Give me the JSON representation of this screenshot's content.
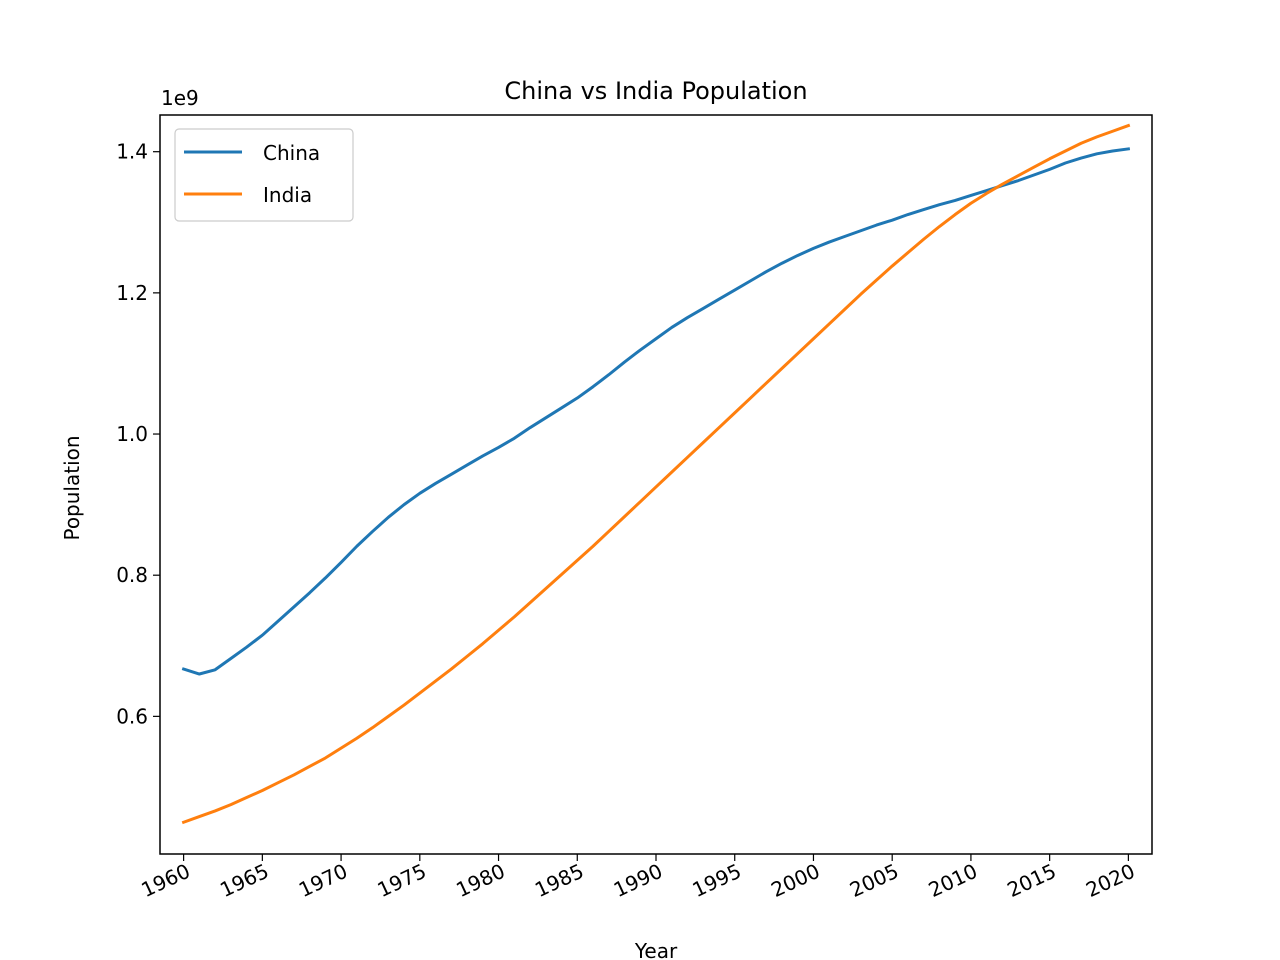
{
  "chart_data": {
    "type": "line",
    "title": "China vs India Population",
    "xlabel": "Year",
    "ylabel": "Population",
    "y_offset_label": "1e9",
    "x_ticks": [
      "1960",
      "1965",
      "1970",
      "1975",
      "1980",
      "1985",
      "1990",
      "1995",
      "2000",
      "2005",
      "2010",
      "2015",
      "2020"
    ],
    "y_ticks": [
      "0.6",
      "0.8",
      "1.0",
      "1.2",
      "1.4"
    ],
    "xlim": [
      1958.5,
      2021.5
    ],
    "ylim": [
      0.405,
      1.452
    ],
    "grid": false,
    "legend_position": "upper left",
    "x": [
      1960,
      1961,
      1962,
      1963,
      1964,
      1965,
      1966,
      1967,
      1968,
      1969,
      1970,
      1971,
      1972,
      1973,
      1974,
      1975,
      1976,
      1977,
      1978,
      1979,
      1980,
      1981,
      1982,
      1983,
      1984,
      1985,
      1986,
      1987,
      1988,
      1989,
      1990,
      1991,
      1992,
      1993,
      1994,
      1995,
      1996,
      1997,
      1998,
      1999,
      2000,
      2001,
      2002,
      2003,
      2004,
      2005,
      2006,
      2007,
      2008,
      2009,
      2010,
      2011,
      2012,
      2013,
      2014,
      2015,
      2016,
      2017,
      2018,
      2019,
      2020
    ],
    "series": [
      {
        "name": "China",
        "color": "#1f77b4",
        "values": [
          0.667,
          0.66,
          0.666,
          0.682,
          0.698,
          0.715,
          0.735,
          0.755,
          0.775,
          0.796,
          0.818,
          0.841,
          0.862,
          0.882,
          0.9,
          0.916,
          0.93,
          0.943,
          0.956,
          0.969,
          0.981,
          0.994,
          1.009,
          1.023,
          1.037,
          1.051,
          1.067,
          1.084,
          1.102,
          1.119,
          1.135,
          1.151,
          1.165,
          1.178,
          1.191,
          1.204,
          1.217,
          1.23,
          1.242,
          1.253,
          1.263,
          1.272,
          1.28,
          1.288,
          1.296,
          1.303,
          1.311,
          1.318,
          1.325,
          1.331,
          1.338,
          1.345,
          1.352,
          1.359,
          1.367,
          1.375,
          1.384,
          1.391,
          1.397,
          1.401,
          1.404
        ]
      },
      {
        "name": "India",
        "color": "#ff7f0e",
        "values": [
          0.45,
          0.458,
          0.466,
          0.475,
          0.485,
          0.495,
          0.506,
          0.517,
          0.529,
          0.541,
          0.555,
          0.569,
          0.584,
          0.6,
          0.616,
          0.633,
          0.65,
          0.667,
          0.685,
          0.703,
          0.722,
          0.741,
          0.761,
          0.781,
          0.801,
          0.821,
          0.841,
          0.862,
          0.883,
          0.904,
          0.925,
          0.946,
          0.967,
          0.988,
          1.009,
          1.03,
          1.051,
          1.072,
          1.093,
          1.114,
          1.135,
          1.156,
          1.177,
          1.198,
          1.218,
          1.238,
          1.257,
          1.276,
          1.294,
          1.311,
          1.327,
          1.341,
          1.354,
          1.366,
          1.378,
          1.39,
          1.401,
          1.412,
          1.421,
          1.429,
          1.437
        ]
      }
    ]
  }
}
